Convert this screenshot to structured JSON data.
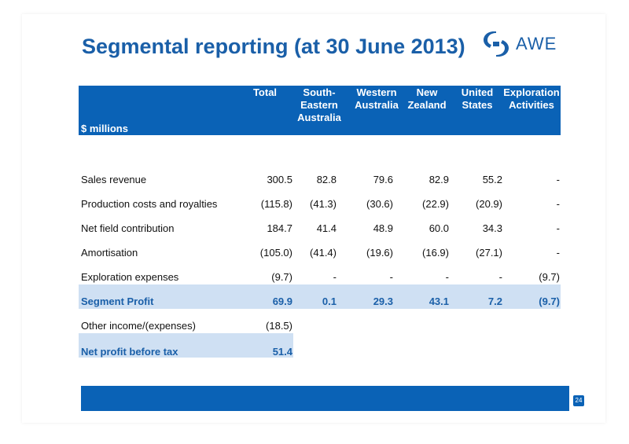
{
  "title": "Segmental reporting (at 30 June 2013)",
  "logo": {
    "text": "AWE",
    "icon": "awe-logo-mark"
  },
  "units_label": "$ millions",
  "columns": [
    "Total",
    "South-\nEastern\nAustralia",
    "Western\nAustralia",
    "New\nZealand",
    "United\nStates",
    "Exploration\nActivities"
  ],
  "rows": [
    {
      "label": "Sales revenue",
      "values": [
        "300.5",
        "82.8",
        "79.6",
        "82.9",
        "55.2",
        "-"
      ]
    },
    {
      "label": "Production costs and royalties",
      "values": [
        "(115.8)",
        "(41.3)",
        "(30.6)",
        "(22.9)",
        "(20.9)",
        "-"
      ]
    },
    {
      "label": "Net field contribution",
      "values": [
        "184.7",
        "41.4",
        "48.9",
        "60.0",
        "34.3",
        "-"
      ]
    },
    {
      "label": "Amortisation",
      "values": [
        "(105.0)",
        "(41.4)",
        "(19.6)",
        "(16.9)",
        "(27.1)",
        "-"
      ]
    },
    {
      "label": "Exploration expenses",
      "values": [
        "(9.7)",
        "-",
        "-",
        "-",
        "-",
        "(9.7)"
      ]
    },
    {
      "label": "Segment Profit",
      "values": [
        "69.9",
        "0.1",
        "29.3",
        "43.1",
        "7.2",
        "(9.7)"
      ]
    },
    {
      "label": "Other income/(expenses)",
      "values": [
        "(18.5)",
        "",
        "",
        "",
        "",
        ""
      ]
    },
    {
      "label": "Net profit before tax",
      "values": [
        "51.4",
        "",
        "",
        "",
        "",
        ""
      ]
    }
  ],
  "page_number": "24",
  "colors": {
    "brand": "#1a5fa8",
    "band": "#0a62b6",
    "highlight": "#cfe0f3"
  }
}
